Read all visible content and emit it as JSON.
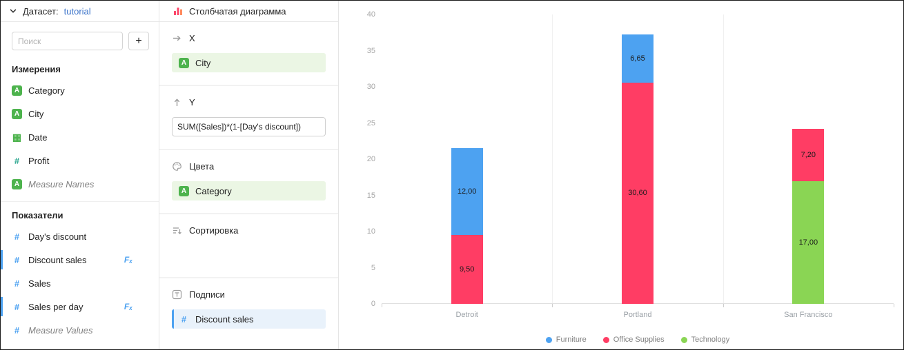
{
  "colors": {
    "accent_blue": "#4da2f1",
    "dimension_green": "#4db34d",
    "link_blue": "#3b73c9",
    "series_blue": "#4DA2F1",
    "series_red": "#FF3D64",
    "series_green": "#8AD554"
  },
  "icon_glyphs": {
    "string": "A",
    "number": "#",
    "date": "▦",
    "fx": "Fₓ"
  },
  "dataset_panel": {
    "header": {
      "label": "Датасет:",
      "link": "tutorial"
    },
    "search": {
      "placeholder": "Поиск",
      "add_button": "+"
    },
    "dimensions": {
      "header": "Измерения",
      "items": [
        {
          "label": "Category",
          "icon": "string"
        },
        {
          "label": "City",
          "icon": "string"
        },
        {
          "label": "Date",
          "icon": "date"
        },
        {
          "label": "Profit",
          "icon": "dim-number"
        },
        {
          "label": "Measure Names",
          "icon": "string",
          "italic": true
        }
      ]
    },
    "measures": {
      "header": "Показатели",
      "items": [
        {
          "label": "Day's discount",
          "icon": "measure"
        },
        {
          "label": "Discount sales",
          "icon": "measure",
          "fx": true,
          "active": true
        },
        {
          "label": "Sales",
          "icon": "measure"
        },
        {
          "label": "Sales per day",
          "icon": "measure",
          "fx": true,
          "active": true
        },
        {
          "label": "Measure Values",
          "icon": "measure",
          "italic": true
        }
      ]
    }
  },
  "config_panel": {
    "title": "Столбчатая диаграмма",
    "sections": [
      {
        "title": "X",
        "icon": "x-arrow",
        "fields": [
          {
            "label": "City",
            "type": "dimension"
          }
        ]
      },
      {
        "title": "Y",
        "icon": "y-arrow",
        "fields": [
          {
            "label": "SUM([Sales])*(1-[Day's discount])",
            "type": "formula"
          }
        ]
      },
      {
        "title": "Цвета",
        "icon": "palette",
        "fields": [
          {
            "label": "Category",
            "type": "dimension"
          }
        ]
      },
      {
        "title": "Сортировка",
        "icon": "sort",
        "fields": []
      },
      {
        "title": "Подписи",
        "icon": "text-label",
        "fields": [
          {
            "label": "Discount sales",
            "type": "measure"
          }
        ]
      }
    ]
  },
  "chart_data": {
    "type": "bar",
    "stacked": true,
    "categories": [
      "Detroit",
      "Portland",
      "San Francisco"
    ],
    "series": [
      {
        "name": "Furniture",
        "color": "#4DA2F1",
        "values": [
          12.0,
          6.65,
          0
        ]
      },
      {
        "name": "Office Supplies",
        "color": "#FF3D64",
        "values": [
          9.5,
          30.6,
          7.2
        ]
      },
      {
        "name": "Technology",
        "color": "#8AD554",
        "values": [
          0,
          0,
          17.0
        ]
      }
    ],
    "value_labels": [
      "12,00",
      "6,65",
      "9,50",
      "30,60",
      "7,20",
      "17,00"
    ],
    "label_decimal_separator": ",",
    "ylim": [
      0,
      40
    ],
    "yticks": [
      0,
      5,
      10,
      15,
      20,
      25,
      30,
      35,
      40
    ],
    "legend_position": "bottom",
    "grid": "vertical-category-separators"
  }
}
